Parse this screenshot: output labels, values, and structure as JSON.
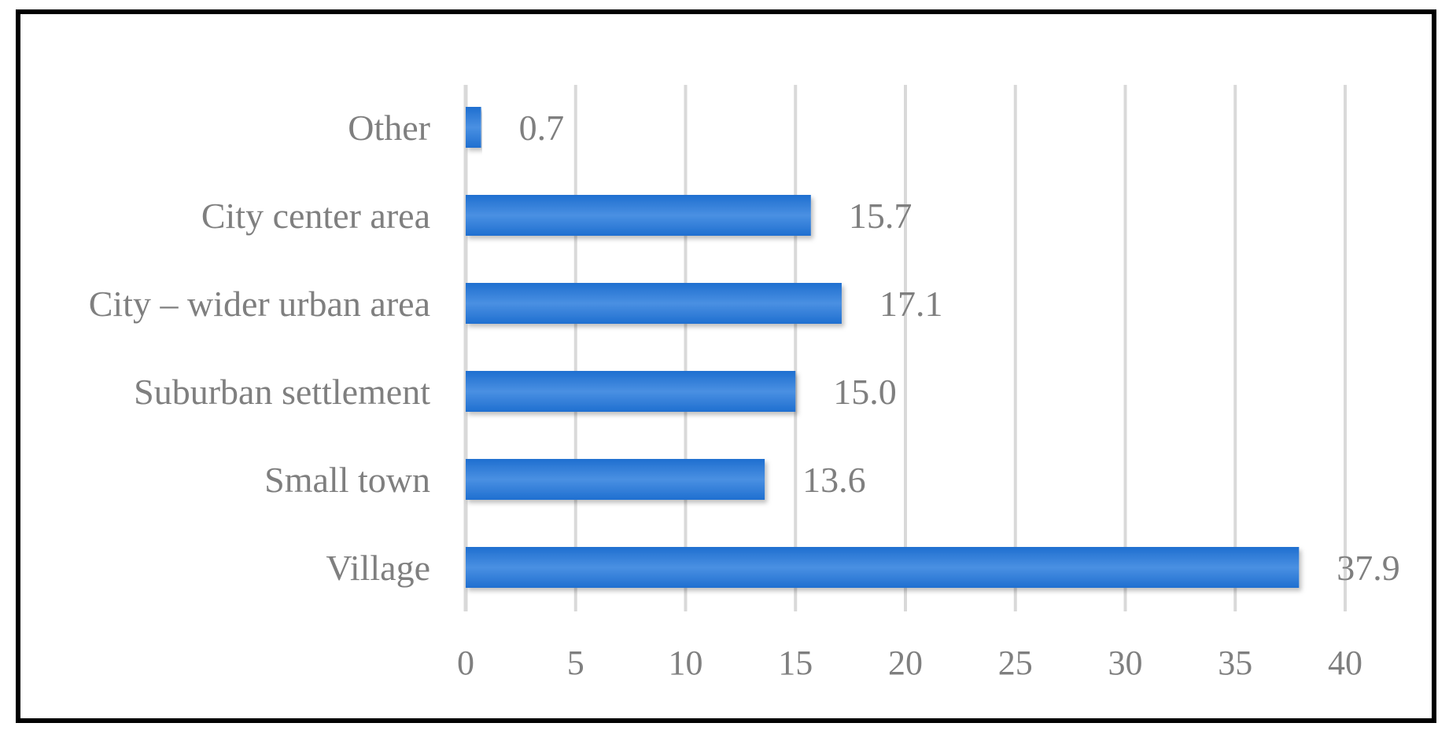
{
  "chart_data": {
    "type": "bar",
    "orientation": "horizontal",
    "categories": [
      "Other",
      "City center area",
      "City – wider urban area",
      "Suburban settlement",
      "Small town",
      "Village"
    ],
    "values": [
      0.7,
      15.7,
      17.1,
      15.0,
      13.6,
      37.9
    ],
    "value_labels": [
      "0.7",
      "15.7",
      "17.1",
      "15.0",
      "13.6",
      "37.9"
    ],
    "title": "",
    "xlabel": "",
    "ylabel": "",
    "xlim": [
      0,
      40
    ],
    "x_ticks": [
      0,
      5,
      10,
      15,
      20,
      25,
      30,
      35,
      40
    ],
    "grid": "vertical",
    "legend": "none",
    "bar_color": "#1f6fd0",
    "bar_color_light": "#4a90e2",
    "text_color": "#7f7f7f",
    "grid_color": "#d9d9d9"
  }
}
